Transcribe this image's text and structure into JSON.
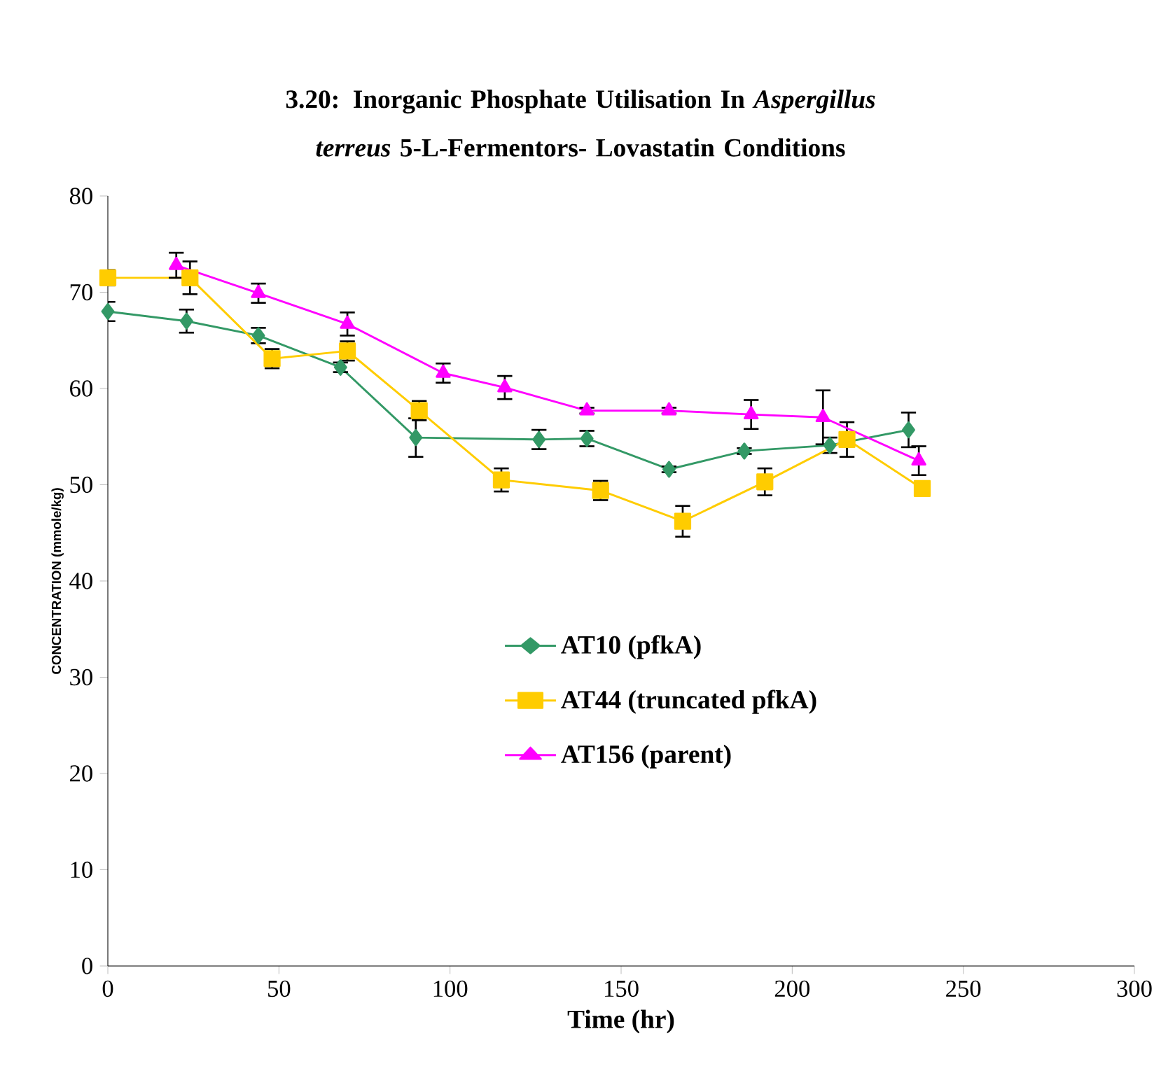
{
  "chart_data": {
    "type": "line",
    "title": "3.20: Inorganic Phosphate Utilisation In *Aspergillus terreus* 5-L-Fermentors- Lovastatin Conditions",
    "xlabel": "Time (hr)",
    "ylabel": "CONCENTRATION (mmole/kg)",
    "xlim": [
      0,
      300
    ],
    "xticks": [
      0,
      50,
      100,
      150,
      200,
      250,
      300
    ],
    "ylim": [
      0,
      80
    ],
    "yticks": [
      0,
      10,
      20,
      30,
      40,
      50,
      60,
      70,
      80
    ],
    "grid": false,
    "legend": "center",
    "series": [
      {
        "name": "AT10 (pfkA)",
        "color": "#339966",
        "marker": "diamond",
        "x": [
          0,
          23,
          44,
          68,
          90,
          126,
          140,
          164,
          186,
          211,
          234
        ],
        "values": [
          68.0,
          67.0,
          65.5,
          62.2,
          54.9,
          54.7,
          54.8,
          51.6,
          53.5,
          54.1,
          55.7
        ],
        "errors": [
          1.0,
          1.2,
          0.8,
          0.5,
          2.0,
          1.0,
          0.8,
          0.3,
          0.3,
          0.8,
          1.8
        ]
      },
      {
        "name": "AT44 (truncated pfkA)",
        "color": "#ffcc00",
        "marker": "square",
        "x": [
          0,
          24,
          48,
          70,
          91,
          115,
          144,
          168,
          192,
          216,
          238
        ],
        "values": [
          71.5,
          71.5,
          63.1,
          63.9,
          57.7,
          50.5,
          49.4,
          46.2,
          50.3,
          54.7,
          49.6
        ],
        "errors": [
          0.8,
          1.7,
          1.0,
          1.0,
          1.0,
          1.2,
          1.0,
          1.6,
          1.4,
          1.8,
          0.3
        ]
      },
      {
        "name": "AT156 (parent)",
        "color": "#ff00ff",
        "marker": "triangle",
        "x": [
          20,
          44,
          70,
          98,
          116,
          140,
          164,
          188,
          209,
          237
        ],
        "values": [
          72.8,
          69.9,
          66.7,
          61.6,
          60.1,
          57.7,
          57.7,
          57.3,
          57.0,
          52.5
        ],
        "errors": [
          1.3,
          1.0,
          1.2,
          1.0,
          1.2,
          0.3,
          0.3,
          1.5,
          2.8,
          1.5
        ]
      }
    ]
  }
}
